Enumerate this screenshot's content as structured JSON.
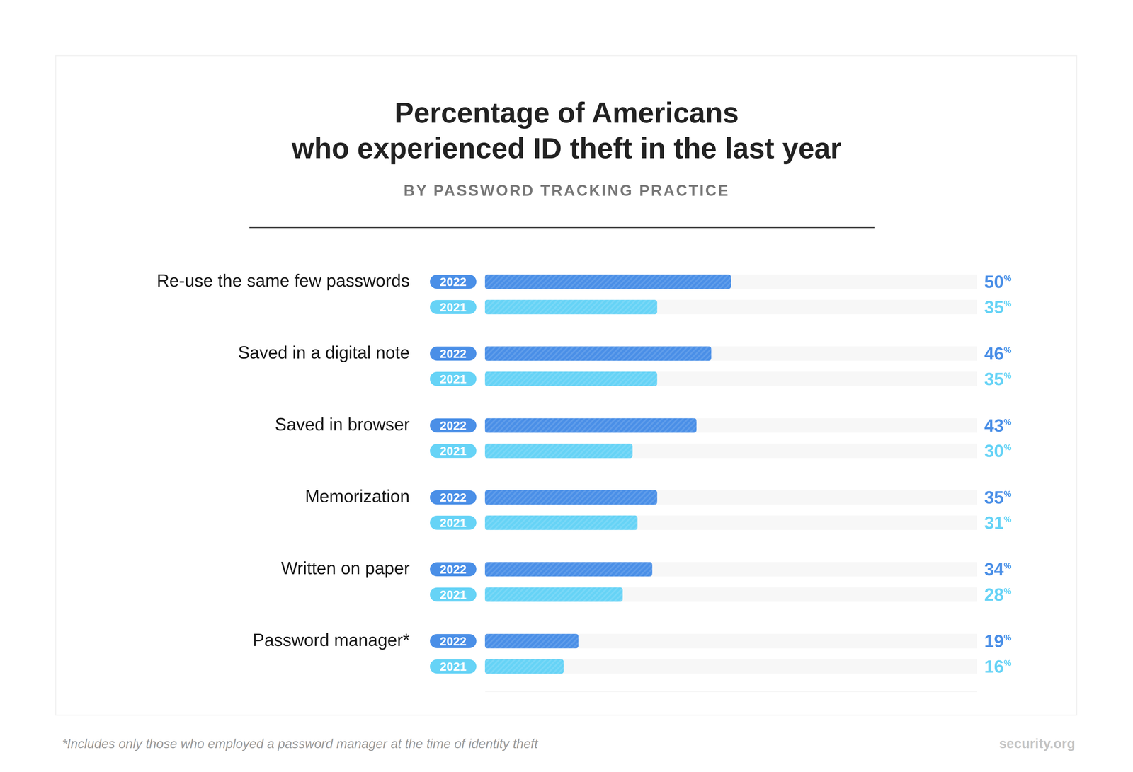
{
  "chart_data": {
    "type": "bar",
    "title": "Percentage of Americans\nwho experienced ID theft in the last year",
    "subtitle": "BY PASSWORD TRACKING PRACTICE",
    "orientation": "horizontal",
    "categories": [
      "Re-use the same few passwords",
      "Saved in a digital note",
      "Saved in browser",
      "Memorization",
      "Written on paper",
      "Password manager*"
    ],
    "series": [
      {
        "name": "2022",
        "color": "#4a8fe7",
        "values": [
          50,
          46,
          43,
          35,
          34,
          19
        ],
        "value_labels": [
          "50%",
          "46%",
          "43%",
          "35%",
          "34%",
          "19%"
        ]
      },
      {
        "name": "2021",
        "color": "#66d3f6",
        "values": [
          35,
          35,
          30,
          31,
          28,
          16
        ],
        "value_labels": [
          "35%",
          "35%",
          "30%",
          "31%",
          "28%",
          "16%"
        ]
      }
    ],
    "xlim": [
      0,
      100
    ],
    "tick_labels": false,
    "grid": false,
    "data_labels": true,
    "annotations": [
      "*Includes only those who employed a password manager at the time of identity theft",
      "security.org"
    ]
  }
}
